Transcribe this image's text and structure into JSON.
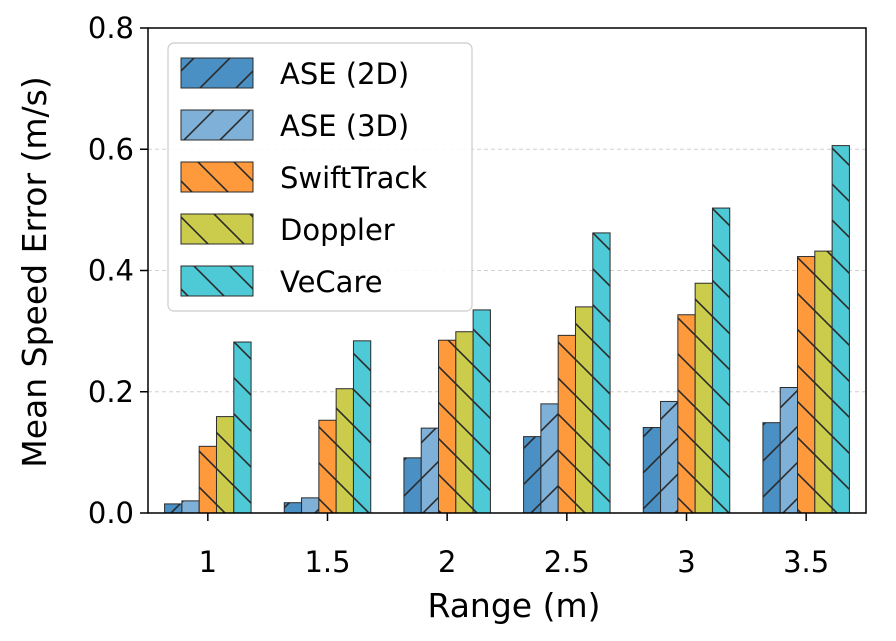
{
  "chart_data": {
    "type": "bar",
    "xlabel": "Range (m)",
    "ylabel": "Mean Speed Error (m/s)",
    "ylim": [
      0,
      0.8
    ],
    "yticks": [
      "0.0",
      "0.2",
      "0.4",
      "0.6",
      "0.8"
    ],
    "categories": [
      "1",
      "1.5",
      "2",
      "2.5",
      "3",
      "3.5"
    ],
    "grid": "horizontal dashed",
    "legend_position": "top-left",
    "series": [
      {
        "name": "ASE (2D)",
        "color": "#4a90c4",
        "hatch": "forward",
        "values": [
          0.015,
          0.017,
          0.091,
          0.126,
          0.141,
          0.149
        ]
      },
      {
        "name": "ASE (3D)",
        "color": "#7fb0d8",
        "hatch": "forward",
        "values": [
          0.02,
          0.025,
          0.14,
          0.18,
          0.184,
          0.207
        ]
      },
      {
        "name": "SwiftTrack",
        "color": "#ff9a3c",
        "hatch": "back",
        "values": [
          0.11,
          0.153,
          0.285,
          0.293,
          0.327,
          0.423
        ]
      },
      {
        "name": "Doppler",
        "color": "#cccc4c",
        "hatch": "back",
        "values": [
          0.159,
          0.205,
          0.299,
          0.34,
          0.379,
          0.432
        ]
      },
      {
        "name": "VeCare",
        "color": "#4dcad6",
        "hatch": "back",
        "values": [
          0.282,
          0.284,
          0.335,
          0.462,
          0.503,
          0.606
        ]
      }
    ]
  }
}
